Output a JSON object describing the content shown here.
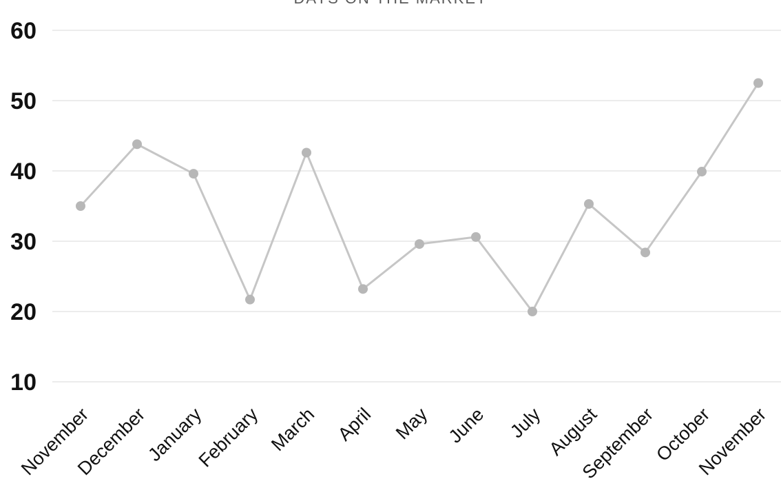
{
  "chart_data": {
    "type": "line",
    "title": "DAYS ON THE MARKET",
    "categories": [
      "November",
      "December",
      "January",
      "February",
      "March",
      "April",
      "May",
      "June",
      "July",
      "August",
      "September",
      "October",
      "November"
    ],
    "series": [
      {
        "name": "Days on the market",
        "values": [
          35,
          43.8,
          39.6,
          21.7,
          42.6,
          23.2,
          29.6,
          30.6,
          20,
          35.3,
          28.4,
          39.9,
          52.5
        ]
      }
    ],
    "xlabel": "",
    "ylabel": "",
    "ylim": [
      10,
      60
    ],
    "yticks": [
      10,
      20,
      30,
      40,
      50,
      60
    ],
    "grid": true,
    "legend_position": "none",
    "colors": {
      "line": "#c6c6c6",
      "marker": "#b7b7b7",
      "gridline": "#e6e6e6",
      "y_tick_label": "#111111",
      "x_tick_label": "#111111",
      "title": "#595959",
      "background": "#ffffff"
    }
  }
}
